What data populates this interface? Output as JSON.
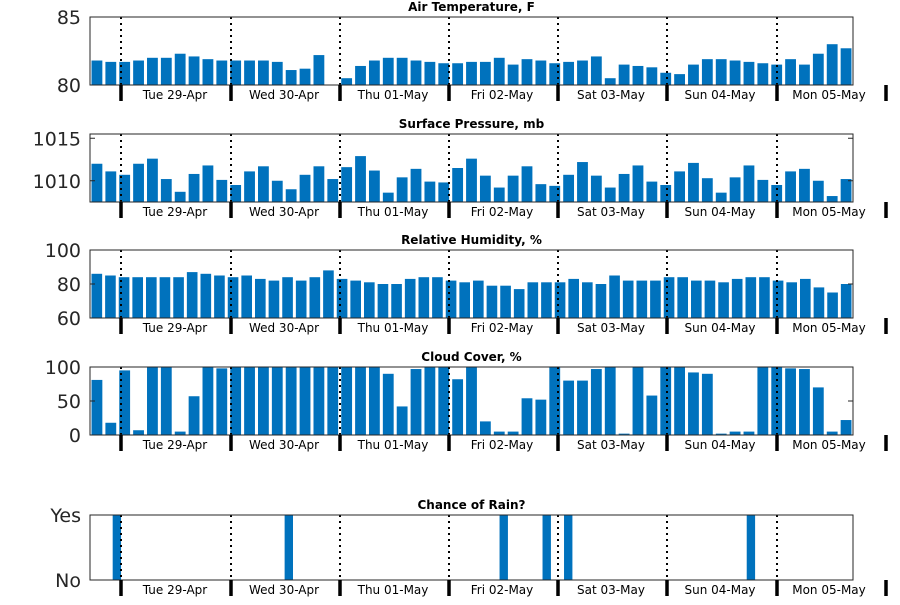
{
  "page": {
    "width": 900,
    "height": 600
  },
  "colors": {
    "bar": "#0072BD",
    "axis": "#262626",
    "day_divider": "#000000",
    "background": "#ffffff"
  },
  "chart_data": [
    {
      "type": "bar",
      "title": "Air Temperature, F",
      "ylim": [
        80,
        85
      ],
      "yticks": [
        80,
        85
      ],
      "ytick_labels": [
        "80",
        "85"
      ],
      "grid": false,
      "day_labels": [
        "Tue 29-Apr",
        "Wed 30-Apr",
        "Thu 01-May",
        "Fri 02-May",
        "Sat 03-May",
        "Sun 04-May",
        "Mon 05-May"
      ],
      "values": [
        81.8,
        81.7,
        81.7,
        81.8,
        82.0,
        82.0,
        82.3,
        82.1,
        81.9,
        81.8,
        81.8,
        81.8,
        81.8,
        81.7,
        81.1,
        81.2,
        82.2,
        80,
        80.5,
        81.4,
        81.8,
        82.0,
        82.0,
        81.8,
        81.7,
        81.6,
        81.6,
        81.7,
        81.7,
        82.0,
        81.5,
        81.9,
        81.8,
        81.6,
        81.7,
        81.8,
        82.1,
        80.5,
        81.5,
        81.4,
        81.3,
        80.9,
        80.8,
        81.5,
        81.9,
        81.9,
        81.8,
        81.7,
        81.6,
        81.5,
        81.9,
        81.5,
        82.3,
        83.0,
        82.7
      ]
    },
    {
      "type": "bar",
      "title": "Surface Pressure, mb",
      "ylim": [
        1007.5,
        1015.5
      ],
      "yticks": [
        1010,
        1015
      ],
      "ytick_labels": [
        "1010",
        "1015"
      ],
      "grid": false,
      "day_labels": [
        "Tue 29-Apr",
        "Wed 30-Apr",
        "Thu 01-May",
        "Fri 02-May",
        "Sat 03-May",
        "Sun 04-May",
        "Mon 05-May"
      ],
      "values": [
        1012.0,
        1011.1,
        1010.7,
        1012.0,
        1012.6,
        1010.2,
        1008.7,
        1010.8,
        1011.8,
        1010.1,
        1009.5,
        1011.1,
        1011.7,
        1010.0,
        1009.0,
        1010.7,
        1011.7,
        1010.2,
        1011.6,
        1012.9,
        1011.2,
        1008.6,
        1010.4,
        1011.4,
        1009.9,
        1009.8,
        1011.5,
        1012.6,
        1010.6,
        1009.2,
        1010.6,
        1011.7,
        1009.6,
        1009.4,
        1010.7,
        1012.2,
        1010.6,
        1009.2,
        1010.8,
        1011.8,
        1009.9,
        1009.5,
        1011.1,
        1012.1,
        1010.3,
        1008.6,
        1010.4,
        1011.8,
        1010.1,
        1009.5,
        1011.1,
        1011.4,
        1010.0,
        1008.2,
        1010.2
      ]
    },
    {
      "type": "bar",
      "title": "Relative Humidity, %",
      "ylim": [
        60,
        100
      ],
      "yticks": [
        60,
        80,
        100
      ],
      "ytick_labels": [
        "60",
        "80",
        "100"
      ],
      "grid": false,
      "day_labels": [
        "Tue 29-Apr",
        "Wed 30-Apr",
        "Thu 01-May",
        "Fri 02-May",
        "Sat 03-May",
        "Sun 04-May",
        "Mon 05-May"
      ],
      "values": [
        86,
        85,
        84,
        84,
        84,
        84,
        84,
        87,
        86,
        85,
        84,
        85,
        83,
        82,
        84,
        82,
        84,
        88,
        83,
        82,
        81,
        80,
        80,
        83,
        84,
        84,
        82,
        81,
        82,
        79,
        79,
        77,
        81,
        81,
        81,
        83,
        81,
        80,
        85,
        82,
        82,
        82,
        84,
        84,
        82,
        82,
        81,
        83,
        84,
        84,
        82,
        81,
        83,
        78,
        75,
        80
      ]
    },
    {
      "type": "bar",
      "title": "Cloud Cover, %",
      "ylim": [
        0,
        100
      ],
      "yticks": [
        0,
        50,
        100
      ],
      "ytick_labels": [
        "0",
        "50",
        "100"
      ],
      "grid": false,
      "day_labels": [
        "Tue 29-Apr",
        "Wed 30-Apr",
        "Thu 01-May",
        "Fri 02-May",
        "Sat 03-May",
        "Sun 04-May",
        "Mon 05-May"
      ],
      "values": [
        81,
        18,
        95,
        7,
        100,
        100,
        5,
        57,
        100,
        98,
        100,
        100,
        100,
        100,
        100,
        100,
        100,
        100,
        100,
        100,
        100,
        90,
        42,
        97,
        100,
        100,
        82,
        100,
        20,
        5,
        5,
        54,
        52,
        100,
        80,
        80,
        97,
        100,
        2,
        100,
        58,
        100,
        100,
        92,
        90,
        2,
        5,
        5,
        100,
        100,
        98,
        97,
        70,
        5,
        22
      ]
    },
    {
      "type": "bar",
      "title": "Chance of Rain?",
      "ylim": [
        0,
        1
      ],
      "yticks": [
        0,
        1
      ],
      "ytick_labels": [
        "No",
        "Yes"
      ],
      "grid": false,
      "day_labels": [
        "Tue 29-Apr",
        "Wed 30-Apr",
        "Thu 01-May",
        "Fri 02-May",
        "Sat 03-May",
        "Sun 04-May",
        "Mon 05-May"
      ],
      "values": [
        0,
        0,
        1,
        0,
        0,
        0,
        0,
        0,
        0,
        0,
        0,
        0,
        0,
        0,
        0,
        0,
        0,
        0,
        1,
        0,
        0,
        0,
        0,
        0,
        0,
        0,
        0,
        0,
        0,
        0,
        0,
        0,
        0,
        0,
        0,
        0,
        0,
        0,
        1,
        0,
        0,
        0,
        1,
        0,
        1,
        0,
        0,
        0,
        0,
        0,
        0,
        0,
        0,
        0,
        0,
        0,
        0,
        0,
        0,
        0,
        0,
        1,
        0,
        0,
        0,
        0,
        0,
        0,
        0,
        0,
        0
      ]
    }
  ]
}
